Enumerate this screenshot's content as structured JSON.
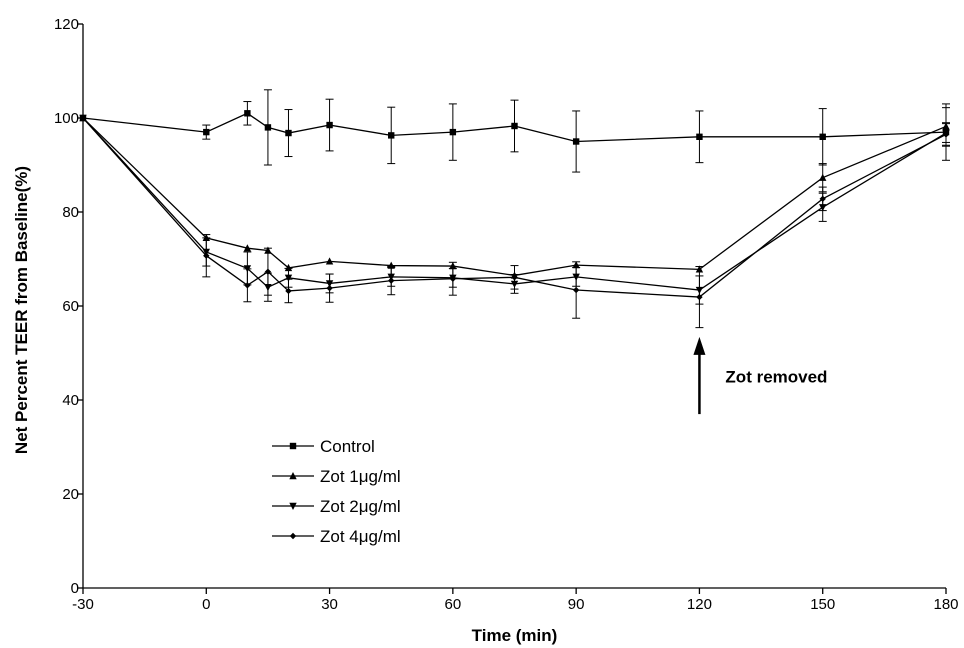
{
  "chart_data": {
    "type": "line",
    "xlabel": "Time (min)",
    "ylabel": "Net Percent TEER from Baseline(%)",
    "xlim": [
      -30,
      180
    ],
    "ylim": [
      0,
      120
    ],
    "x_ticks": [
      -30,
      0,
      30,
      60,
      90,
      120,
      150,
      180
    ],
    "y_ticks": [
      0,
      20,
      40,
      60,
      80,
      100,
      120
    ],
    "grid": false,
    "legend_position": "bottom-left",
    "series": [
      {
        "name": "Control",
        "marker": "square",
        "points": [
          {
            "x": -30,
            "y": 100,
            "err": 0
          },
          {
            "x": 0,
            "y": 97,
            "err": 1.5
          },
          {
            "x": 10,
            "y": 101,
            "err": 2.5
          },
          {
            "x": 15,
            "y": 98,
            "err": 8
          },
          {
            "x": 20,
            "y": 96.8,
            "err": 5
          },
          {
            "x": 30,
            "y": 98.5,
            "err": 5.5
          },
          {
            "x": 45,
            "y": 96.3,
            "err": 6
          },
          {
            "x": 60,
            "y": 97,
            "err": 6
          },
          {
            "x": 75,
            "y": 98.3,
            "err": 5.5
          },
          {
            "x": 90,
            "y": 95,
            "err": 6.5
          },
          {
            "x": 120,
            "y": 96,
            "err": 5.5
          },
          {
            "x": 150,
            "y": 96,
            "err": 6
          },
          {
            "x": 180,
            "y": 97,
            "err": 6
          }
        ]
      },
      {
        "name": "Zot 1μg/ml",
        "marker": "triangle-up",
        "points": [
          {
            "x": -30,
            "y": 100,
            "err": 0
          },
          {
            "x": 0,
            "y": 74.5,
            "err": 0
          },
          {
            "x": 10,
            "y": 72.3,
            "err": 0
          },
          {
            "x": 15,
            "y": 71.8,
            "err": 0
          },
          {
            "x": 20,
            "y": 68.1,
            "err": 0
          },
          {
            "x": 30,
            "y": 69.5,
            "err": 0
          },
          {
            "x": 45,
            "y": 68.6,
            "err": 0
          },
          {
            "x": 60,
            "y": 68.5,
            "err": 0
          },
          {
            "x": 75,
            "y": 66.5,
            "err": 0
          },
          {
            "x": 90,
            "y": 68.7,
            "err": 0
          },
          {
            "x": 120,
            "y": 67.8,
            "err": 0
          },
          {
            "x": 150,
            "y": 87.3,
            "err": 3
          },
          {
            "x": 180,
            "y": 98.2,
            "err": 4
          }
        ]
      },
      {
        "name": "Zot 2μg/ml",
        "marker": "triangle-down",
        "points": [
          {
            "x": -30,
            "y": 100,
            "err": 0
          },
          {
            "x": 0,
            "y": 71.5,
            "err": 3
          },
          {
            "x": 10,
            "y": 68,
            "err": 3.5
          },
          {
            "x": 15,
            "y": 64,
            "err": 3
          },
          {
            "x": 20,
            "y": 66,
            "err": 2
          },
          {
            "x": 30,
            "y": 64.8,
            "err": 2
          },
          {
            "x": 45,
            "y": 66.2,
            "err": 2
          },
          {
            "x": 60,
            "y": 66,
            "err": 2
          },
          {
            "x": 75,
            "y": 64.7,
            "err": 2
          },
          {
            "x": 90,
            "y": 66.2,
            "err": 2
          },
          {
            "x": 120,
            "y": 63.4,
            "err": 3
          },
          {
            "x": 150,
            "y": 81,
            "err": 3
          },
          {
            "x": 180,
            "y": 96.8,
            "err": 2
          }
        ]
      },
      {
        "name": "Zot 4μg/ml",
        "marker": "plus",
        "points": [
          {
            "x": -30,
            "y": 100,
            "err": 0
          },
          {
            "x": 0,
            "y": 70.7,
            "err": 4.5
          },
          {
            "x": 10,
            "y": 64.4,
            "err": 3.5
          },
          {
            "x": 15,
            "y": 67.3,
            "err": 5
          },
          {
            "x": 20,
            "y": 63.2,
            "err": 2.5
          },
          {
            "x": 30,
            "y": 63.8,
            "err": 3
          },
          {
            "x": 45,
            "y": 65.4,
            "err": 3
          },
          {
            "x": 60,
            "y": 65.8,
            "err": 3.5
          },
          {
            "x": 75,
            "y": 66.1,
            "err": 2.5
          },
          {
            "x": 90,
            "y": 63.4,
            "err": 6
          },
          {
            "x": 120,
            "y": 61.9,
            "err": 6.5
          },
          {
            "x": 150,
            "y": 82.8,
            "err": 2.5
          },
          {
            "x": 180,
            "y": 96.5,
            "err": 2.5
          }
        ]
      }
    ],
    "annotation": {
      "text": "Zot removed",
      "arrow_x": 120,
      "arrow_from_y": 37,
      "arrow_to_y": 53
    }
  }
}
